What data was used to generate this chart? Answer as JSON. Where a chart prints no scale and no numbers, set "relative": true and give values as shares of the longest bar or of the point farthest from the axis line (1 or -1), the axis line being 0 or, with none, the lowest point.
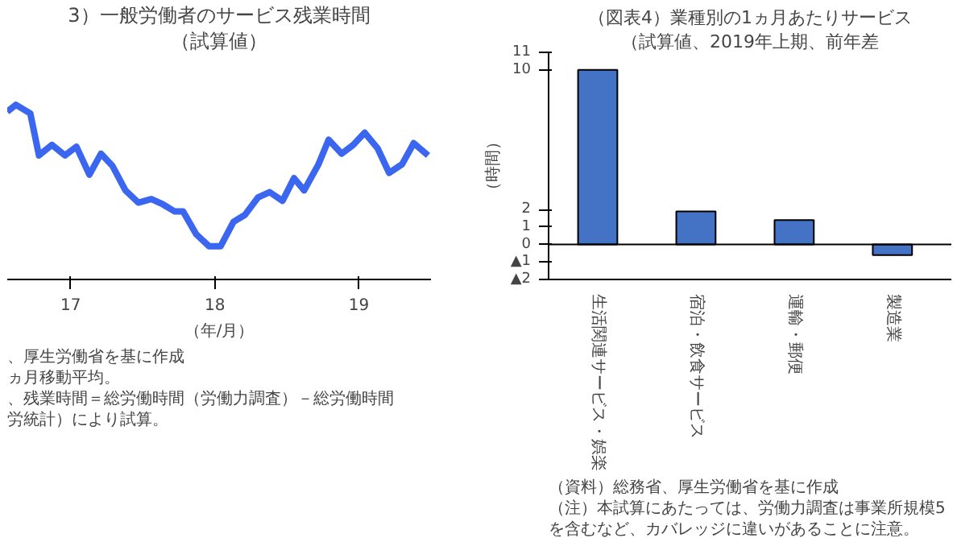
{
  "chart_data": [
    {
      "type": "line",
      "title": "3）一般労働者のサービス残業時間",
      "subtitle": "（試算値）",
      "xlabel": "（年/月）",
      "relative": true,
      "color": "#3a66f0",
      "xlim": [
        16.56,
        19.5
      ],
      "xticks": [
        17,
        18,
        19
      ],
      "tick_labels": "x",
      "x": [
        16.56,
        16.62,
        16.72,
        16.78,
        16.87,
        16.96,
        17.04,
        17.13,
        17.21,
        17.29,
        17.38,
        17.47,
        17.56,
        17.64,
        17.72,
        17.78,
        17.87,
        17.96,
        18.04,
        18.13,
        18.21,
        18.3,
        18.38,
        18.47,
        18.55,
        18.62,
        18.72,
        18.79,
        18.88,
        18.96,
        19.04,
        19.13,
        19.21,
        19.3,
        19.38,
        19.48
      ],
      "values": [
        0.96,
        1.0,
        0.95,
        0.71,
        0.77,
        0.71,
        0.76,
        0.6,
        0.72,
        0.65,
        0.51,
        0.44,
        0.46,
        0.43,
        0.39,
        0.39,
        0.26,
        0.19,
        0.19,
        0.33,
        0.37,
        0.47,
        0.5,
        0.45,
        0.58,
        0.51,
        0.66,
        0.8,
        0.72,
        0.77,
        0.84,
        0.75,
        0.61,
        0.66,
        0.78,
        0.71
      ],
      "annotations": [
        "、厚生労働省を基に作成",
        "ヵ月移動平均。",
        "、残業時間＝総労働時間（労働力調査）－総労働時間",
        "労統計）により試算。"
      ]
    },
    {
      "type": "bar",
      "title": "（図表4）業種別の1ヵ月あたりサービス",
      "subtitle": "（試算値、2019年上期、前年差",
      "ylabel": "（時間）",
      "color": "#4472c4",
      "categories": [
        "生活関連サービス・娯楽",
        "宿泊・飲食サービス",
        "運輸・郵便",
        "製造業"
      ],
      "values": [
        10,
        1.9,
        1.4,
        -0.6
      ],
      "ylim": [
        -2,
        11
      ],
      "yticks": [
        {
          "value": -2,
          "label": "▲2"
        },
        {
          "value": -1,
          "label": "▲1"
        },
        0,
        1,
        2,
        10,
        11
      ],
      "ref_lines": [
        {
          "axis": "y",
          "value": 0
        }
      ],
      "annotations": [
        "（資料）総務省、厚生労働省を基に作成",
        "（注）本試算にあたっては、労働力調査は事業所規模5",
        "を含むなど、カバレッジに違いがあることに注意。"
      ]
    }
  ]
}
